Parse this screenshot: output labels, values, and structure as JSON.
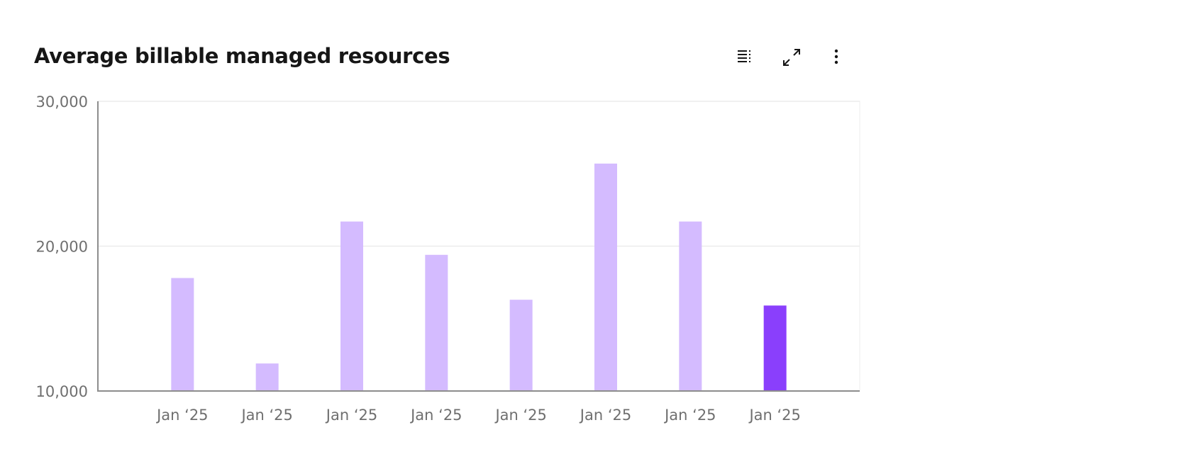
{
  "header": {
    "title": "Average billable managed resources"
  },
  "toolbar": {
    "icons": [
      "table-view-icon",
      "maximize-icon",
      "overflow-menu-icon"
    ]
  },
  "chart_data": {
    "type": "bar",
    "title": "Average billable managed resources",
    "categories": [
      "Jan ‘25",
      "Jan ‘25",
      "Jan ‘25",
      "Jan ‘25",
      "Jan ‘25",
      "Jan ‘25",
      "Jan ‘25",
      "Jan ‘25"
    ],
    "values": [
      17800,
      11900,
      21700,
      19400,
      16300,
      25700,
      21700,
      15900
    ],
    "ylim": [
      10000,
      30000
    ],
    "yticks": [
      "10,000",
      "20,000",
      "30,000"
    ],
    "ytick_values": [
      10000,
      20000,
      30000
    ],
    "grid": true,
    "colors": {
      "default": "#d4bbff",
      "highlight": "#8a3ffc"
    },
    "highlight_index": 7
  }
}
